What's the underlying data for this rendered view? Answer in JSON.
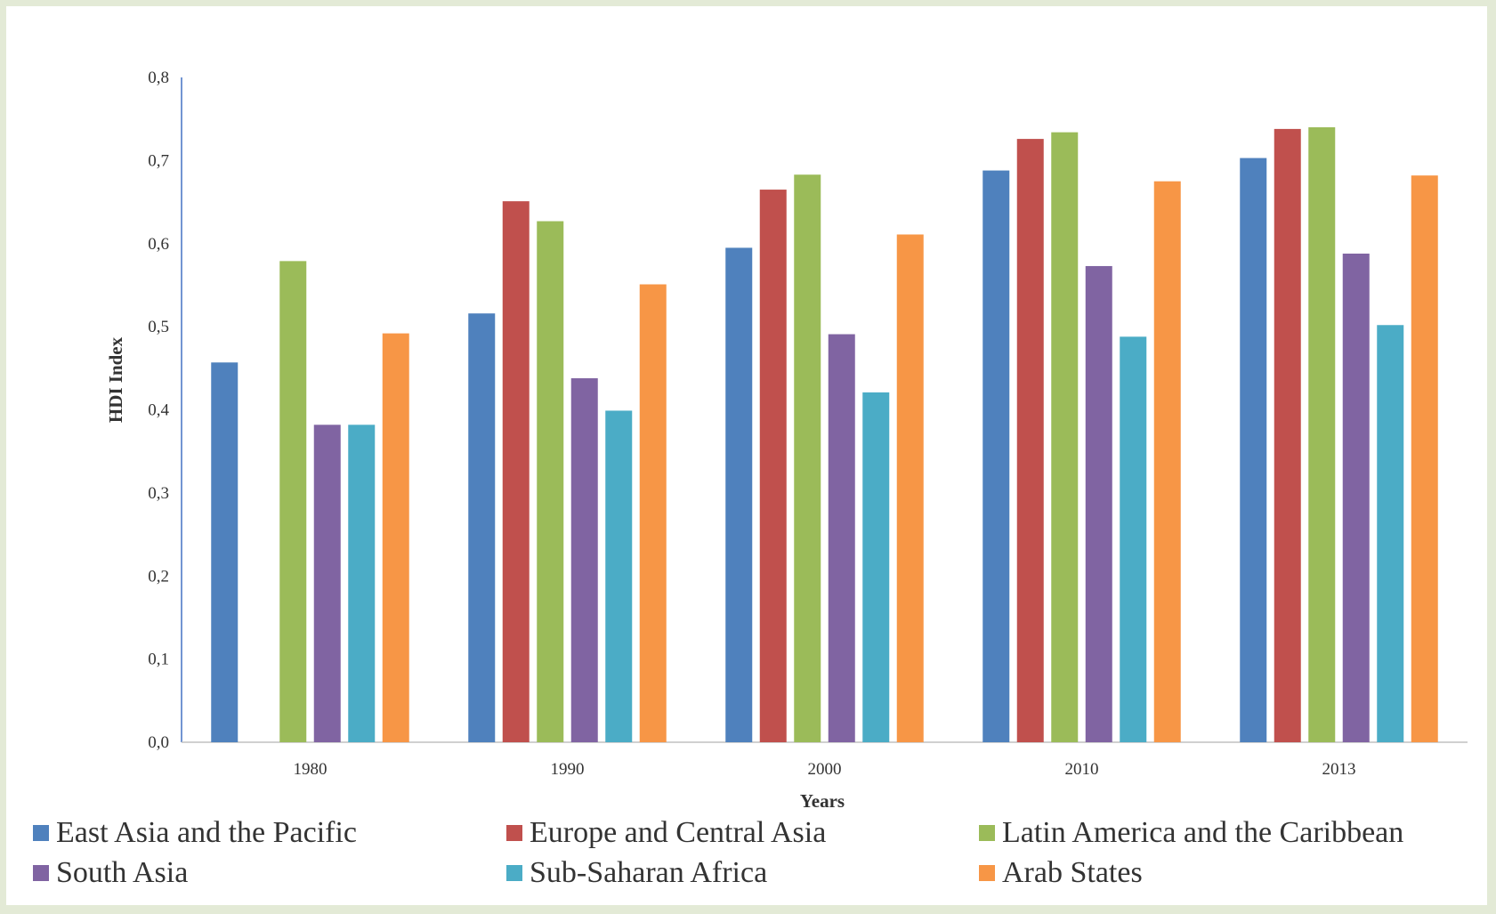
{
  "chart_data": {
    "type": "bar",
    "categories": [
      "1980",
      "1990",
      "2000",
      "2010",
      "2013"
    ],
    "series": [
      {
        "name": "East Asia and the Pacific",
        "color": "#4f81bd",
        "values": [
          0.457,
          0.516,
          0.595,
          0.688,
          0.703
        ]
      },
      {
        "name": "Europe and Central Asia",
        "color": "#c0504d",
        "values": [
          null,
          0.651,
          0.665,
          0.726,
          0.738
        ]
      },
      {
        "name": "Latin America and the Caribbean",
        "color": "#9bbb59",
        "values": [
          0.579,
          0.627,
          0.683,
          0.734,
          0.74
        ]
      },
      {
        "name": "South Asia",
        "color": "#8064a2",
        "values": [
          0.382,
          0.438,
          0.491,
          0.573,
          0.588
        ]
      },
      {
        "name": "Sub-Saharan Africa",
        "color": "#4bacc6",
        "values": [
          0.382,
          0.399,
          0.421,
          0.488,
          0.502
        ]
      },
      {
        "name": "Arab States",
        "color": "#f79646",
        "values": [
          0.492,
          0.551,
          0.611,
          0.675,
          0.682
        ]
      }
    ],
    "ylabel": "HDI Index",
    "xlabel": "Years",
    "ylim": [
      0,
      0.8
    ],
    "yticks": [
      "0,0",
      "0,1",
      "0,2",
      "0,3",
      "0,4",
      "0,5",
      "0,6",
      "0,7",
      "0,8"
    ],
    "grid": false,
    "legend_position": "bottom"
  }
}
